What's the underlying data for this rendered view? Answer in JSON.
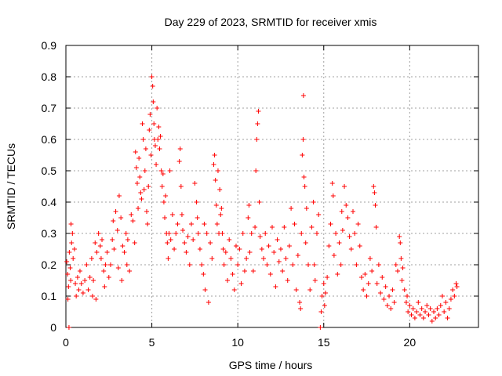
{
  "chart_data": {
    "type": "scatter",
    "title": "Day 229 of 2023, SRMTID for receiver xmis",
    "xlabel": "GPS time / hours",
    "ylabel": "SRMTID / TECUs",
    "xlim": [
      0,
      24
    ],
    "ylim": [
      0,
      0.9
    ],
    "xticks": [
      0,
      5,
      10,
      15,
      20
    ],
    "xtick_labels": [
      "0",
      "5",
      "10",
      "15",
      "20"
    ],
    "yticks": [
      0,
      0.1,
      0.2,
      0.3,
      0.4,
      0.5,
      0.6,
      0.7,
      0.8,
      0.9
    ],
    "ytick_labels": [
      "0",
      "0.1",
      "0.2",
      "0.3",
      "0.4",
      "0.5",
      "0.6",
      "0.7",
      "0.8",
      "0.9"
    ],
    "grid": true,
    "marker": "+",
    "color": "#ff0000",
    "series": [
      {
        "name": "SRMTID",
        "points": [
          [
            0.05,
            0.21
          ],
          [
            0.1,
            0.17
          ],
          [
            0.12,
            0.09
          ],
          [
            0.15,
            0.13
          ],
          [
            0.18,
            0.0
          ],
          [
            0.2,
            0.24
          ],
          [
            0.25,
            0.19
          ],
          [
            0.28,
            0.15
          ],
          [
            0.3,
            0.33
          ],
          [
            0.33,
            0.27
          ],
          [
            0.38,
            0.3
          ],
          [
            0.42,
            0.22
          ],
          [
            0.5,
            0.25
          ],
          [
            0.55,
            0.14
          ],
          [
            0.6,
            0.1
          ],
          [
            0.68,
            0.16
          ],
          [
            0.75,
            0.12
          ],
          [
            0.82,
            0.18
          ],
          [
            0.9,
            0.14
          ],
          [
            1.0,
            0.11
          ],
          [
            1.1,
            0.15
          ],
          [
            1.2,
            0.2
          ],
          [
            1.3,
            0.12
          ],
          [
            1.4,
            0.16
          ],
          [
            1.5,
            0.22
          ],
          [
            1.55,
            0.1
          ],
          [
            1.6,
            0.15
          ],
          [
            1.7,
            0.27
          ],
          [
            1.75,
            0.09
          ],
          [
            1.8,
            0.24
          ],
          [
            1.9,
            0.3
          ],
          [
            2.0,
            0.26
          ],
          [
            2.05,
            0.22
          ],
          [
            2.1,
            0.28
          ],
          [
            2.2,
            0.18
          ],
          [
            2.25,
            0.13
          ],
          [
            2.3,
            0.2
          ],
          [
            2.4,
            0.24
          ],
          [
            2.5,
            0.16
          ],
          [
            2.6,
            0.2
          ],
          [
            2.7,
            0.28
          ],
          [
            2.75,
            0.34
          ],
          [
            2.8,
            0.25
          ],
          [
            2.9,
            0.37
          ],
          [
            3.0,
            0.31
          ],
          [
            3.05,
            0.19
          ],
          [
            3.1,
            0.42
          ],
          [
            3.2,
            0.35
          ],
          [
            3.25,
            0.15
          ],
          [
            3.3,
            0.26
          ],
          [
            3.4,
            0.24
          ],
          [
            3.5,
            0.3
          ],
          [
            3.55,
            0.2
          ],
          [
            3.6,
            0.28
          ],
          [
            3.7,
            0.18
          ],
          [
            3.8,
            0.36
          ],
          [
            3.9,
            0.34
          ],
          [
            4.0,
            0.27
          ],
          [
            4.05,
            0.56
          ],
          [
            4.1,
            0.51
          ],
          [
            4.15,
            0.46
          ],
          [
            4.2,
            0.38
          ],
          [
            4.25,
            0.54
          ],
          [
            4.3,
            0.48
          ],
          [
            4.35,
            0.43
          ],
          [
            4.4,
            0.41
          ],
          [
            4.45,
            0.65
          ],
          [
            4.5,
            0.6
          ],
          [
            4.55,
            0.44
          ],
          [
            4.6,
            0.5
          ],
          [
            4.65,
            0.57
          ],
          [
            4.7,
            0.37
          ],
          [
            4.75,
            0.33
          ],
          [
            4.8,
            0.45
          ],
          [
            4.85,
            0.63
          ],
          [
            4.9,
            0.68
          ],
          [
            4.95,
            0.55
          ],
          [
            5.0,
            0.8
          ],
          [
            5.05,
            0.77
          ],
          [
            5.08,
            0.72
          ],
          [
            5.12,
            0.65
          ],
          [
            5.15,
            0.6
          ],
          [
            5.2,
            0.58
          ],
          [
            5.25,
            0.52
          ],
          [
            5.3,
            0.7
          ],
          [
            5.35,
            0.6
          ],
          [
            5.4,
            0.64
          ],
          [
            5.45,
            0.57
          ],
          [
            5.5,
            0.61
          ],
          [
            5.55,
            0.5
          ],
          [
            5.6,
            0.45
          ],
          [
            5.65,
            0.49
          ],
          [
            5.7,
            0.4
          ],
          [
            5.75,
            0.35
          ],
          [
            5.8,
            0.42
          ],
          [
            5.85,
            0.3
          ],
          [
            5.9,
            0.27
          ],
          [
            5.95,
            0.22
          ],
          [
            6.0,
            0.3
          ],
          [
            6.05,
            0.5
          ],
          [
            6.1,
            0.28
          ],
          [
            6.2,
            0.36
          ],
          [
            6.3,
            0.25
          ],
          [
            6.4,
            0.3
          ],
          [
            6.5,
            0.33
          ],
          [
            6.6,
            0.53
          ],
          [
            6.65,
            0.57
          ],
          [
            6.7,
            0.45
          ],
          [
            6.75,
            0.36
          ],
          [
            6.8,
            0.31
          ],
          [
            6.9,
            0.27
          ],
          [
            7.0,
            0.24
          ],
          [
            7.1,
            0.29
          ],
          [
            7.2,
            0.2
          ],
          [
            7.3,
            0.33
          ],
          [
            7.4,
            0.28
          ],
          [
            7.5,
            0.46
          ],
          [
            7.6,
            0.4
          ],
          [
            7.65,
            0.35
          ],
          [
            7.7,
            0.3
          ],
          [
            7.8,
            0.25
          ],
          [
            7.9,
            0.2
          ],
          [
            8.0,
            0.17
          ],
          [
            8.05,
            0.33
          ],
          [
            8.1,
            0.12
          ],
          [
            8.2,
            0.3
          ],
          [
            8.3,
            0.08
          ],
          [
            8.4,
            0.27
          ],
          [
            8.5,
            0.22
          ],
          [
            8.6,
            0.52
          ],
          [
            8.65,
            0.55
          ],
          [
            8.7,
            0.47
          ],
          [
            8.75,
            0.39
          ],
          [
            8.8,
            0.33
          ],
          [
            8.85,
            0.5
          ],
          [
            8.9,
            0.3
          ],
          [
            8.95,
            0.44
          ],
          [
            9.0,
            0.36
          ],
          [
            9.05,
            0.38
          ],
          [
            9.1,
            0.3
          ],
          [
            9.15,
            0.25
          ],
          [
            9.2,
            0.2
          ],
          [
            9.3,
            0.24
          ],
          [
            9.4,
            0.15
          ],
          [
            9.5,
            0.28
          ],
          [
            9.6,
            0.22
          ],
          [
            9.7,
            0.17
          ],
          [
            9.8,
            0.12
          ],
          [
            9.9,
            0.26
          ],
          [
            10.0,
            0.2
          ],
          [
            10.1,
            0.25
          ],
          [
            10.2,
            0.14
          ],
          [
            10.3,
            0.3
          ],
          [
            10.4,
            0.18
          ],
          [
            10.5,
            0.22
          ],
          [
            10.6,
            0.35
          ],
          [
            10.65,
            0.39
          ],
          [
            10.7,
            0.24
          ],
          [
            10.8,
            0.3
          ],
          [
            10.9,
            0.18
          ],
          [
            11.0,
            0.32
          ],
          [
            11.05,
            0.5
          ],
          [
            11.1,
            0.6
          ],
          [
            11.15,
            0.65
          ],
          [
            11.2,
            0.69
          ],
          [
            11.25,
            0.4
          ],
          [
            11.3,
            0.29
          ],
          [
            11.4,
            0.25
          ],
          [
            11.5,
            0.22
          ],
          [
            11.6,
            0.3
          ],
          [
            11.7,
            0.2
          ],
          [
            11.8,
            0.26
          ],
          [
            11.9,
            0.17
          ],
          [
            12.0,
            0.32
          ],
          [
            12.1,
            0.24
          ],
          [
            12.2,
            0.13
          ],
          [
            12.3,
            0.28
          ],
          [
            12.4,
            0.21
          ],
          [
            12.5,
            0.25
          ],
          [
            12.6,
            0.18
          ],
          [
            12.7,
            0.32
          ],
          [
            12.8,
            0.22
          ],
          [
            12.9,
            0.15
          ],
          [
            13.0,
            0.26
          ],
          [
            13.1,
            0.38
          ],
          [
            13.2,
            0.2
          ],
          [
            13.3,
            0.33
          ],
          [
            13.4,
            0.12
          ],
          [
            13.5,
            0.23
          ],
          [
            13.6,
            0.08
          ],
          [
            13.65,
            0.06
          ],
          [
            13.7,
            0.3
          ],
          [
            13.75,
            0.55
          ],
          [
            13.8,
            0.6
          ],
          [
            13.82,
            0.74
          ],
          [
            13.85,
            0.48
          ],
          [
            13.9,
            0.45
          ],
          [
            13.95,
            0.27
          ],
          [
            14.0,
            0.38
          ],
          [
            14.1,
            0.2
          ],
          [
            14.2,
            0.12
          ],
          [
            14.3,
            0.32
          ],
          [
            14.4,
            0.4
          ],
          [
            14.45,
            0.2
          ],
          [
            14.5,
            0.15
          ],
          [
            14.6,
            0.3
          ],
          [
            14.7,
            0.36
          ],
          [
            14.8,
            0.0
          ],
          [
            14.85,
            0.05
          ],
          [
            14.9,
            0.1
          ],
          [
            15.0,
            0.14
          ],
          [
            15.05,
            0.07
          ],
          [
            15.1,
            0.11
          ],
          [
            15.2,
            0.16
          ],
          [
            15.3,
            0.26
          ],
          [
            15.4,
            0.33
          ],
          [
            15.5,
            0.46
          ],
          [
            15.55,
            0.42
          ],
          [
            15.6,
            0.23
          ],
          [
            15.7,
            0.3
          ],
          [
            15.8,
            0.17
          ],
          [
            15.9,
            0.27
          ],
          [
            16.0,
            0.2
          ],
          [
            16.05,
            0.37
          ],
          [
            16.1,
            0.31
          ],
          [
            16.2,
            0.45
          ],
          [
            16.3,
            0.39
          ],
          [
            16.4,
            0.35
          ],
          [
            16.5,
            0.29
          ],
          [
            16.6,
            0.25
          ],
          [
            16.7,
            0.37
          ],
          [
            16.8,
            0.3
          ],
          [
            16.9,
            0.2
          ],
          [
            17.0,
            0.33
          ],
          [
            17.1,
            0.26
          ],
          [
            17.2,
            0.16
          ],
          [
            17.3,
            0.12
          ],
          [
            17.4,
            0.17
          ],
          [
            17.5,
            0.1
          ],
          [
            17.6,
            0.14
          ],
          [
            17.7,
            0.22
          ],
          [
            17.8,
            0.18
          ],
          [
            17.9,
            0.45
          ],
          [
            17.95,
            0.43
          ],
          [
            18.0,
            0.39
          ],
          [
            18.05,
            0.32
          ],
          [
            18.1,
            0.14
          ],
          [
            18.2,
            0.2
          ],
          [
            18.3,
            0.11
          ],
          [
            18.4,
            0.16
          ],
          [
            18.5,
            0.09
          ],
          [
            18.6,
            0.13
          ],
          [
            18.7,
            0.07
          ],
          [
            18.8,
            0.1
          ],
          [
            18.9,
            0.06
          ],
          [
            19.0,
            0.12
          ],
          [
            19.1,
            0.08
          ],
          [
            19.2,
            0.2
          ],
          [
            19.3,
            0.18
          ],
          [
            19.4,
            0.29
          ],
          [
            19.45,
            0.27
          ],
          [
            19.5,
            0.22
          ],
          [
            19.55,
            0.15
          ],
          [
            19.6,
            0.19
          ],
          [
            19.7,
            0.12
          ],
          [
            19.8,
            0.08
          ],
          [
            19.85,
            0.1
          ],
          [
            19.9,
            0.05
          ],
          [
            20.0,
            0.07
          ],
          [
            20.1,
            0.04
          ],
          [
            20.2,
            0.06
          ],
          [
            20.3,
            0.03
          ],
          [
            20.4,
            0.05
          ],
          [
            20.5,
            0.08
          ],
          [
            20.6,
            0.04
          ],
          [
            20.7,
            0.06
          ],
          [
            20.8,
            0.03
          ],
          [
            20.9,
            0.05
          ],
          [
            21.0,
            0.07
          ],
          [
            21.1,
            0.04
          ],
          [
            21.2,
            0.06
          ],
          [
            21.3,
            0.02
          ],
          [
            21.4,
            0.05
          ],
          [
            21.5,
            0.03
          ],
          [
            21.6,
            0.06
          ],
          [
            21.7,
            0.04
          ],
          [
            21.8,
            0.07
          ],
          [
            21.9,
            0.1
          ],
          [
            22.0,
            0.05
          ],
          [
            22.1,
            0.08
          ],
          [
            22.2,
            0.03
          ],
          [
            22.3,
            0.06
          ],
          [
            22.4,
            0.09
          ],
          [
            22.5,
            0.12
          ],
          [
            22.6,
            0.1
          ],
          [
            22.7,
            0.14
          ],
          [
            22.75,
            0.13
          ]
        ]
      }
    ]
  }
}
